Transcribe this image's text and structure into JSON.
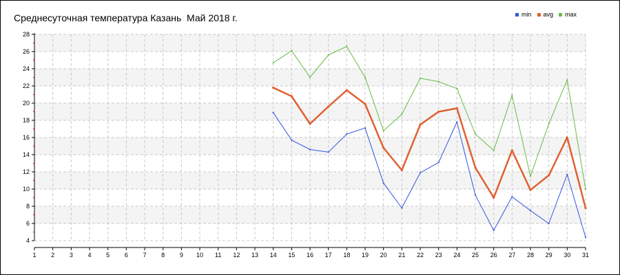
{
  "chart_data": {
    "type": "line",
    "title": "Среднесуточная температура Казань  Май 2018 г.",
    "xlabel": "",
    "ylabel": "",
    "x": [
      1,
      2,
      3,
      4,
      5,
      6,
      7,
      8,
      9,
      10,
      11,
      12,
      13,
      14,
      15,
      16,
      17,
      18,
      19,
      20,
      21,
      22,
      23,
      24,
      25,
      26,
      27,
      28,
      29,
      30,
      31
    ],
    "xlim": [
      1,
      31
    ],
    "ylim": [
      4,
      28
    ],
    "yticks": [
      4,
      6,
      8,
      10,
      12,
      14,
      16,
      18,
      20,
      22,
      24,
      26,
      28
    ],
    "grid": true,
    "legend_position": "top-right",
    "series": [
      {
        "name": "min",
        "color": "#3355dd",
        "width": 1,
        "points": [
          [
            14,
            18.9
          ],
          [
            15,
            15.7
          ],
          [
            16,
            14.6
          ],
          [
            17,
            14.3
          ],
          [
            18,
            16.4
          ],
          [
            19,
            17.1
          ],
          [
            20,
            10.7
          ],
          [
            21,
            7.8
          ],
          [
            22,
            11.9
          ],
          [
            23,
            13.1
          ],
          [
            24,
            17.8
          ],
          [
            25,
            9.3
          ],
          [
            26,
            5.2
          ],
          [
            27,
            9.1
          ],
          [
            28,
            7.5
          ],
          [
            29,
            6.0
          ],
          [
            30,
            11.7
          ],
          [
            31,
            4.4
          ]
        ]
      },
      {
        "name": "avg",
        "color": "#e06030",
        "width": 2.5,
        "points": [
          [
            14,
            21.8
          ],
          [
            15,
            20.8
          ],
          [
            16,
            17.6
          ],
          [
            17,
            19.6
          ],
          [
            18,
            21.5
          ],
          [
            19,
            19.9
          ],
          [
            20,
            14.8
          ],
          [
            21,
            12.2
          ],
          [
            22,
            17.5
          ],
          [
            23,
            19.0
          ],
          [
            24,
            19.4
          ],
          [
            25,
            12.5
          ],
          [
            26,
            9.0
          ],
          [
            27,
            14.5
          ],
          [
            28,
            9.9
          ],
          [
            29,
            11.6
          ],
          [
            30,
            16.0
          ],
          [
            31,
            7.8
          ]
        ]
      },
      {
        "name": "max",
        "color": "#66bb44",
        "width": 1,
        "points": [
          [
            14,
            24.7
          ],
          [
            15,
            26.1
          ],
          [
            16,
            23.0
          ],
          [
            17,
            25.6
          ],
          [
            18,
            26.6
          ],
          [
            19,
            23.0
          ],
          [
            20,
            16.8
          ],
          [
            21,
            18.7
          ],
          [
            22,
            22.9
          ],
          [
            23,
            22.5
          ],
          [
            24,
            21.7
          ],
          [
            25,
            16.4
          ],
          [
            26,
            14.5
          ],
          [
            27,
            20.9
          ],
          [
            28,
            11.5
          ],
          [
            29,
            17.6
          ],
          [
            30,
            22.7
          ],
          [
            31,
            10.0
          ]
        ]
      }
    ]
  }
}
